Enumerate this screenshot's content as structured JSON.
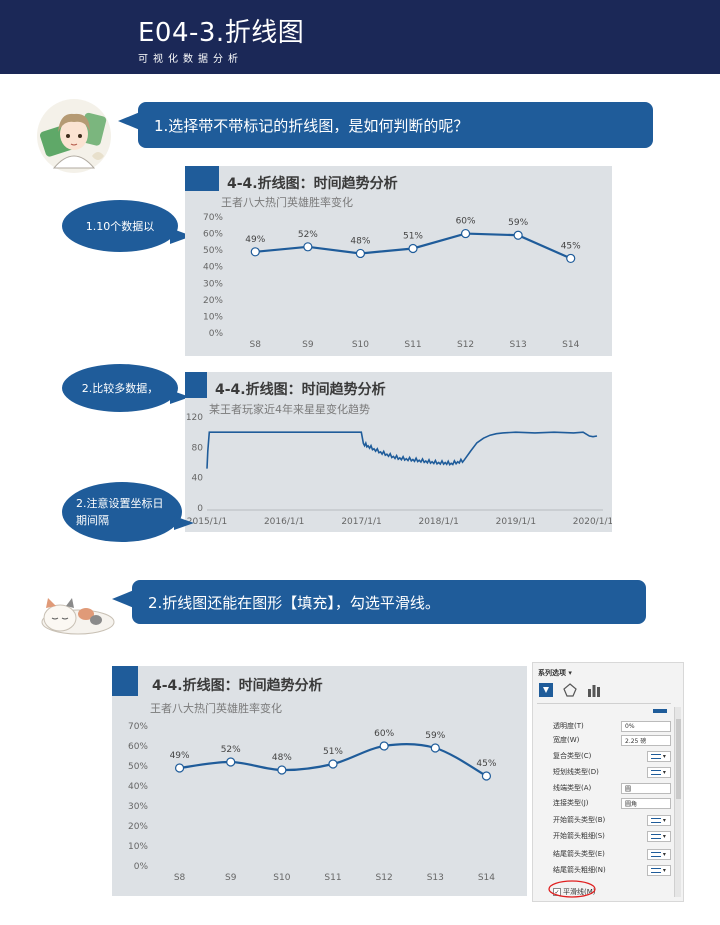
{
  "banner": {
    "title": "E04-3.折线图",
    "subtitle": "可视化数据分析"
  },
  "callouts": [
    {
      "text": "1.选择带不带标记的折线图，是如何判断的呢？"
    },
    {
      "text": "2.折线图还能在图形【填充】，勾选平滑线。"
    }
  ],
  "bubbles": [
    {
      "text": "1.10个数据以"
    },
    {
      "text": "2.比较多数据，"
    },
    {
      "text": "2.注意设置坐标日期间隔"
    }
  ],
  "chart_data": [
    {
      "type": "line",
      "title": "4-4.折线图：时间趋势分析",
      "subtitle": "王者八大热门英雄胜率变化",
      "categories": [
        "S8",
        "S9",
        "S10",
        "S11",
        "S12",
        "S13",
        "S14"
      ],
      "values": [
        49,
        52,
        48,
        51,
        60,
        59,
        45
      ],
      "data_labels": [
        "49%",
        "52%",
        "48%",
        "51%",
        "60%",
        "59%",
        "45%"
      ],
      "yticks": [
        "0%",
        "10%",
        "20%",
        "30%",
        "40%",
        "50%",
        "60%",
        "70%"
      ],
      "ylim": [
        0,
        70
      ],
      "markers": true,
      "smooth": false,
      "color": "#1f5c9a"
    },
    {
      "type": "line",
      "title": "4-4.折线图：时间趋势分析",
      "subtitle": "某王者玩家近4年来星星变化趋势",
      "x_ticks": [
        "2015/1/1",
        "2016/1/1",
        "2017/1/1",
        "2018/1/1",
        "2019/1/1",
        "2020/1/1"
      ],
      "yticks": [
        "0",
        "40",
        "80",
        "120"
      ],
      "ylim": [
        0,
        120
      ],
      "x_range": [
        "2015/1/1",
        "2020/1/1"
      ],
      "series_points": [
        [
          "2015/1/1",
          52
        ],
        [
          "2015/1/5",
          75
        ],
        [
          "2015/1/12",
          100
        ],
        [
          "2016/12/31",
          100
        ],
        [
          "2017/1/10",
          85
        ],
        [
          "2017/2/1",
          82
        ],
        [
          "2017/3/1",
          78
        ],
        [
          "2017/4/1",
          74
        ],
        [
          "2017/5/1",
          71
        ],
        [
          "2017/6/1",
          68
        ],
        [
          "2017/7/1",
          66
        ],
        [
          "2017/8/1",
          65
        ],
        [
          "2017/9/1",
          64
        ],
        [
          "2017/10/1",
          63
        ],
        [
          "2017/11/1",
          62
        ],
        [
          "2017/12/1",
          61
        ],
        [
          "2018/1/1",
          60
        ],
        [
          "2018/2/1",
          60
        ],
        [
          "2018/3/1",
          59
        ],
        [
          "2018/4/1",
          61
        ],
        [
          "2018/5/1",
          63
        ],
        [
          "2018/6/1",
          75
        ],
        [
          "2018/7/1",
          86
        ],
        [
          "2018/8/1",
          92
        ],
        [
          "2018/9/1",
          96
        ],
        [
          "2018/10/1",
          98
        ],
        [
          "2018/11/1",
          99
        ],
        [
          "2019/1/1",
          100
        ],
        [
          "2019/4/1",
          99
        ],
        [
          "2019/7/1",
          100
        ],
        [
          "2019/10/1",
          99
        ],
        [
          "2019/11/15",
          100
        ],
        [
          "2019/12/15",
          95
        ],
        [
          "2020/1/1",
          94
        ],
        [
          "2020/1/20",
          95
        ]
      ],
      "color": "#1f5c9a"
    },
    {
      "type": "line",
      "title": "4-4.折线图：时间趋势分析",
      "subtitle": "王者八大热门英雄胜率变化",
      "categories": [
        "S8",
        "S9",
        "S10",
        "S11",
        "S12",
        "S13",
        "S14"
      ],
      "values": [
        49,
        52,
        48,
        51,
        60,
        59,
        45
      ],
      "data_labels": [
        "49%",
        "52%",
        "48%",
        "51%",
        "60%",
        "59%",
        "45%"
      ],
      "yticks": [
        "0%",
        "10%",
        "20%",
        "30%",
        "40%",
        "50%",
        "60%",
        "70%"
      ],
      "ylim": [
        0,
        70
      ],
      "markers": true,
      "smooth": true,
      "color": "#1f5c9a"
    }
  ],
  "format_panel": {
    "title": "系列选项 ▾",
    "tabs": [
      "fill-line-icon",
      "effects-icon",
      "series-options-icon"
    ],
    "rows": [
      {
        "label": "透明度(T)",
        "value": "0%"
      },
      {
        "label": "宽度(W)",
        "value": "2.25 磅"
      },
      {
        "label": "复合类型(C)",
        "value": ""
      },
      {
        "label": "短划线类型(D)",
        "value": ""
      },
      {
        "label": "线端类型(A)",
        "value": "圆"
      },
      {
        "label": "连接类型(J)",
        "value": "圆角"
      },
      {
        "label": "开始箭头类型(B)",
        "value": ""
      },
      {
        "label": "开始箭头粗细(S)",
        "value": ""
      },
      {
        "label": "结尾箭头类型(E)",
        "value": ""
      },
      {
        "label": "结尾箭头粗细(N)",
        "value": ""
      }
    ],
    "smooth_label": "平滑线(M)",
    "smooth_checked": true,
    "highlight_color": "#e02020"
  }
}
